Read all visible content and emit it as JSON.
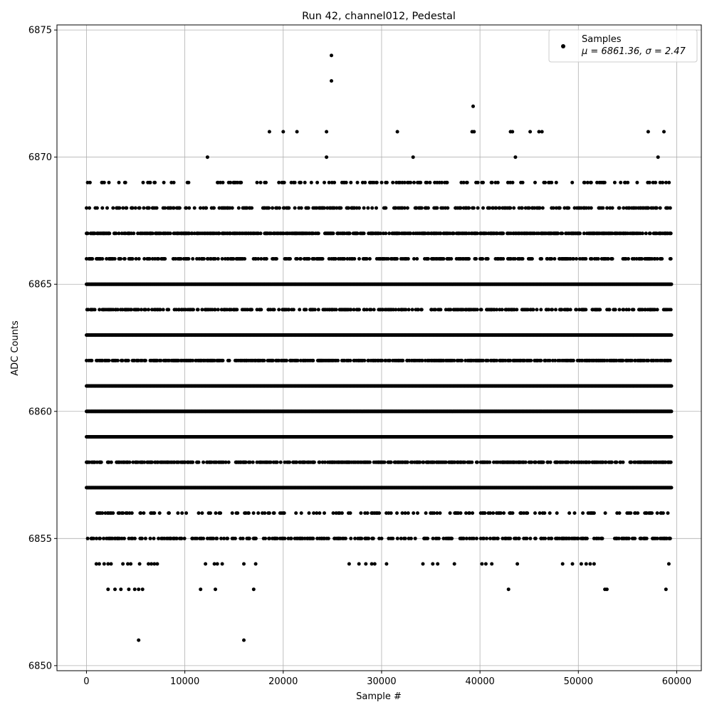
{
  "chart_data": {
    "type": "scatter",
    "title": "Run 42, channel012, Pedestal",
    "xlabel": "Sample #",
    "ylabel": "ADC Counts",
    "xlim": [
      -3000,
      62500
    ],
    "ylim": [
      6849.8,
      6875.2
    ],
    "xticks": [
      0,
      10000,
      20000,
      30000,
      40000,
      50000,
      60000
    ],
    "xtick_labels": [
      "0",
      "10000",
      "20000",
      "30000",
      "40000",
      "50000",
      "60000"
    ],
    "yticks": [
      6850,
      6855,
      6860,
      6865,
      6870,
      6875
    ],
    "ytick_labels": [
      "6850",
      "6855",
      "6860",
      "6865",
      "6870",
      "6875"
    ],
    "grid": true,
    "legend": {
      "position": "top-right",
      "label": "Samples",
      "stats_label": "μ = 6861.36, σ = 2.47"
    },
    "marker_color": "#000000",
    "x_range": [
      0,
      59500
    ],
    "mean": 6861.36,
    "sigma": 2.47,
    "level_density": [
      {
        "y": 6851,
        "density": 0.0
      },
      {
        "y": 6852,
        "density": 0.0
      },
      {
        "y": 6853,
        "density": 0.0
      },
      {
        "y": 6854,
        "density": 0.0
      },
      {
        "y": 6855,
        "density": 0.55
      },
      {
        "y": 6856,
        "density": 0.3
      },
      {
        "y": 6857,
        "density": 1.0
      },
      {
        "y": 6858,
        "density": 0.8
      },
      {
        "y": 6859,
        "density": 1.0
      },
      {
        "y": 6860,
        "density": 1.0
      },
      {
        "y": 6861,
        "density": 1.0
      },
      {
        "y": 6862,
        "density": 0.85
      },
      {
        "y": 6863,
        "density": 1.0
      },
      {
        "y": 6864,
        "density": 0.6
      },
      {
        "y": 6865,
        "density": 1.0
      },
      {
        "y": 6866,
        "density": 0.6
      },
      {
        "y": 6867,
        "density": 0.85
      },
      {
        "y": 6868,
        "density": 0.5
      },
      {
        "y": 6869,
        "density": 0.25
      }
    ],
    "sparse_points": [
      {
        "x": 5300,
        "y": 6851
      },
      {
        "x": 16000,
        "y": 6851
      },
      {
        "x": 2200,
        "y": 6853
      },
      {
        "x": 2900,
        "y": 6853
      },
      {
        "x": 3500,
        "y": 6853
      },
      {
        "x": 4300,
        "y": 6853
      },
      {
        "x": 4900,
        "y": 6853
      },
      {
        "x": 5300,
        "y": 6853
      },
      {
        "x": 5700,
        "y": 6853
      },
      {
        "x": 11600,
        "y": 6853
      },
      {
        "x": 13100,
        "y": 6853
      },
      {
        "x": 17000,
        "y": 6853
      },
      {
        "x": 42900,
        "y": 6853
      },
      {
        "x": 52700,
        "y": 6853
      },
      {
        "x": 52900,
        "y": 6853
      },
      {
        "x": 58900,
        "y": 6853
      },
      {
        "x": 1000,
        "y": 6854
      },
      {
        "x": 1300,
        "y": 6854
      },
      {
        "x": 1800,
        "y": 6854
      },
      {
        "x": 2200,
        "y": 6854
      },
      {
        "x": 2500,
        "y": 6854
      },
      {
        "x": 3700,
        "y": 6854
      },
      {
        "x": 4200,
        "y": 6854
      },
      {
        "x": 4500,
        "y": 6854
      },
      {
        "x": 5400,
        "y": 6854
      },
      {
        "x": 6300,
        "y": 6854
      },
      {
        "x": 6600,
        "y": 6854
      },
      {
        "x": 6900,
        "y": 6854
      },
      {
        "x": 7200,
        "y": 6854
      },
      {
        "x": 12100,
        "y": 6854
      },
      {
        "x": 13000,
        "y": 6854
      },
      {
        "x": 13300,
        "y": 6854
      },
      {
        "x": 13800,
        "y": 6854
      },
      {
        "x": 16000,
        "y": 6854
      },
      {
        "x": 17200,
        "y": 6854
      },
      {
        "x": 26700,
        "y": 6854
      },
      {
        "x": 27700,
        "y": 6854
      },
      {
        "x": 28400,
        "y": 6854
      },
      {
        "x": 29000,
        "y": 6854
      },
      {
        "x": 29300,
        "y": 6854
      },
      {
        "x": 30500,
        "y": 6854
      },
      {
        "x": 34200,
        "y": 6854
      },
      {
        "x": 35200,
        "y": 6854
      },
      {
        "x": 35700,
        "y": 6854
      },
      {
        "x": 37400,
        "y": 6854
      },
      {
        "x": 40200,
        "y": 6854
      },
      {
        "x": 40600,
        "y": 6854
      },
      {
        "x": 41200,
        "y": 6854
      },
      {
        "x": 43800,
        "y": 6854
      },
      {
        "x": 48400,
        "y": 6854
      },
      {
        "x": 49400,
        "y": 6854
      },
      {
        "x": 50300,
        "y": 6854
      },
      {
        "x": 50800,
        "y": 6854
      },
      {
        "x": 51200,
        "y": 6854
      },
      {
        "x": 51600,
        "y": 6854
      },
      {
        "x": 59200,
        "y": 6854
      },
      {
        "x": 12300,
        "y": 6870
      },
      {
        "x": 24400,
        "y": 6870
      },
      {
        "x": 33200,
        "y": 6870
      },
      {
        "x": 43600,
        "y": 6870
      },
      {
        "x": 58100,
        "y": 6870
      },
      {
        "x": 18600,
        "y": 6871
      },
      {
        "x": 20000,
        "y": 6871
      },
      {
        "x": 21400,
        "y": 6871
      },
      {
        "x": 24400,
        "y": 6871
      },
      {
        "x": 31600,
        "y": 6871
      },
      {
        "x": 39200,
        "y": 6871
      },
      {
        "x": 39400,
        "y": 6871
      },
      {
        "x": 43100,
        "y": 6871
      },
      {
        "x": 43300,
        "y": 6871
      },
      {
        "x": 45100,
        "y": 6871
      },
      {
        "x": 46000,
        "y": 6871
      },
      {
        "x": 46300,
        "y": 6871
      },
      {
        "x": 57100,
        "y": 6871
      },
      {
        "x": 58700,
        "y": 6871
      },
      {
        "x": 39300,
        "y": 6872
      },
      {
        "x": 24900,
        "y": 6873
      },
      {
        "x": 24900,
        "y": 6874
      }
    ]
  }
}
